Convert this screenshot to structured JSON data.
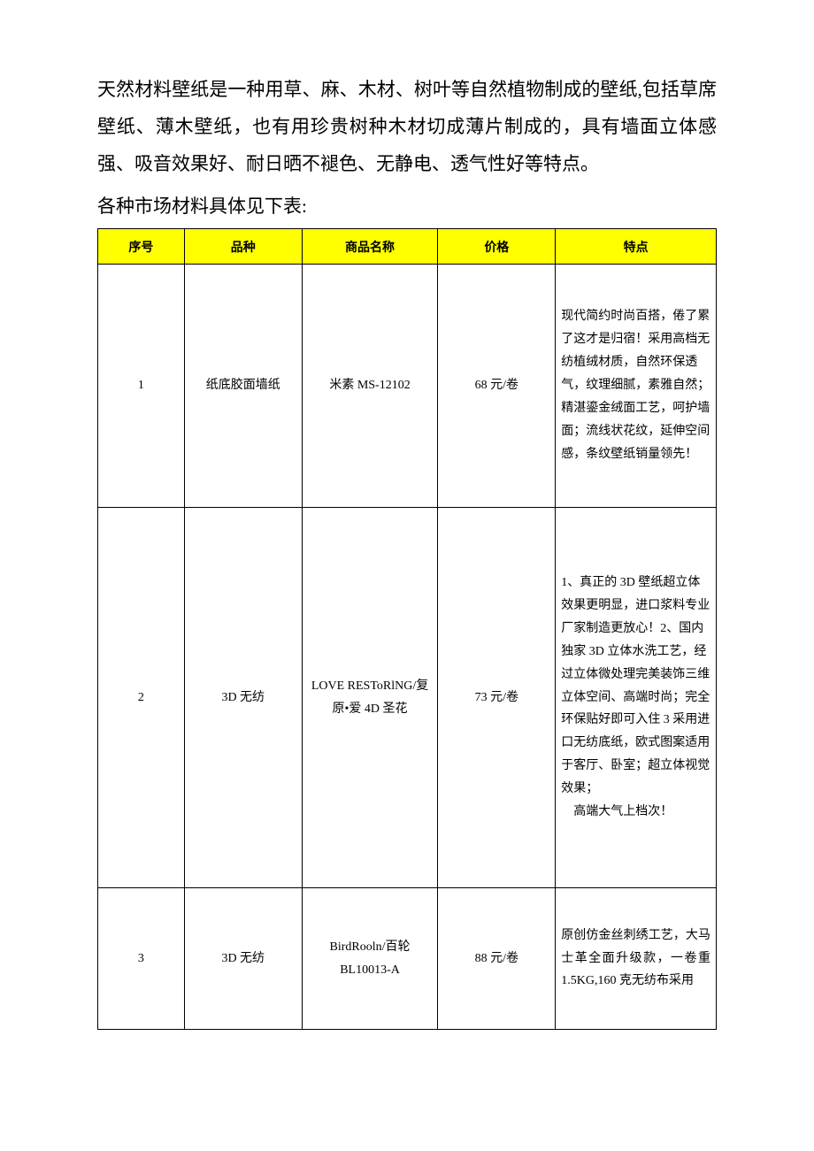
{
  "intro": {
    "p1": "天然材料壁纸是一种用草、麻、木材、树叶等自然植物制成的壁纸,包括草席壁纸、薄木壁纸，也有用珍贵树种木材切成薄片制成的，具有墙面立体感强、吸音效果好、耐日晒不褪色、无静电、透气性好等特点。",
    "p2": "各种市场材料具体见下表:"
  },
  "table": {
    "header_bg": "#ffff00",
    "border_color": "#000000",
    "columns": [
      "序号",
      "品种",
      "商品名称",
      "价格",
      "特点"
    ],
    "rows": [
      {
        "index": "1",
        "type": "纸底胶面墙纸",
        "name": "米素 MS-12102",
        "price": "68 元/卷",
        "feature": "现代简约时尚百搭，倦了累了这才是归宿！采用高档无纺植绒材质，自然环保透气，纹理细腻，素雅自然；精湛鎏金绒面工艺，呵护墙面；流线状花纹，延伸空间感，条纹壁纸销量领先！"
      },
      {
        "index": "2",
        "type": "3D 无纺",
        "name": "LOVE RESToRlNG/复原•爱 4D 圣花",
        "price": "73 元/卷",
        "feature_main": "1、真正的 3D 壁纸超立体效果更明显，进口浆料专业厂家制造更放心！2、国内独家 3D 立体水洗工艺，经过立体微处理完美装饰三维立体空间、高端时尚；完全环保贴好即可入住 3 采用进口无纺底纸，欧式图案适用于客厅、卧室；超立体视觉效果；",
        "feature_tail": "高端大气上档次！"
      },
      {
        "index": "3",
        "type": "3D 无纺",
        "name": "BirdRooln/百轮BL10013-A",
        "price": "88 元/卷",
        "feature": "原创仿金丝刺绣工艺，大马士革全面升级款，一卷重1.5KG,160 克无纺布采用"
      }
    ]
  }
}
